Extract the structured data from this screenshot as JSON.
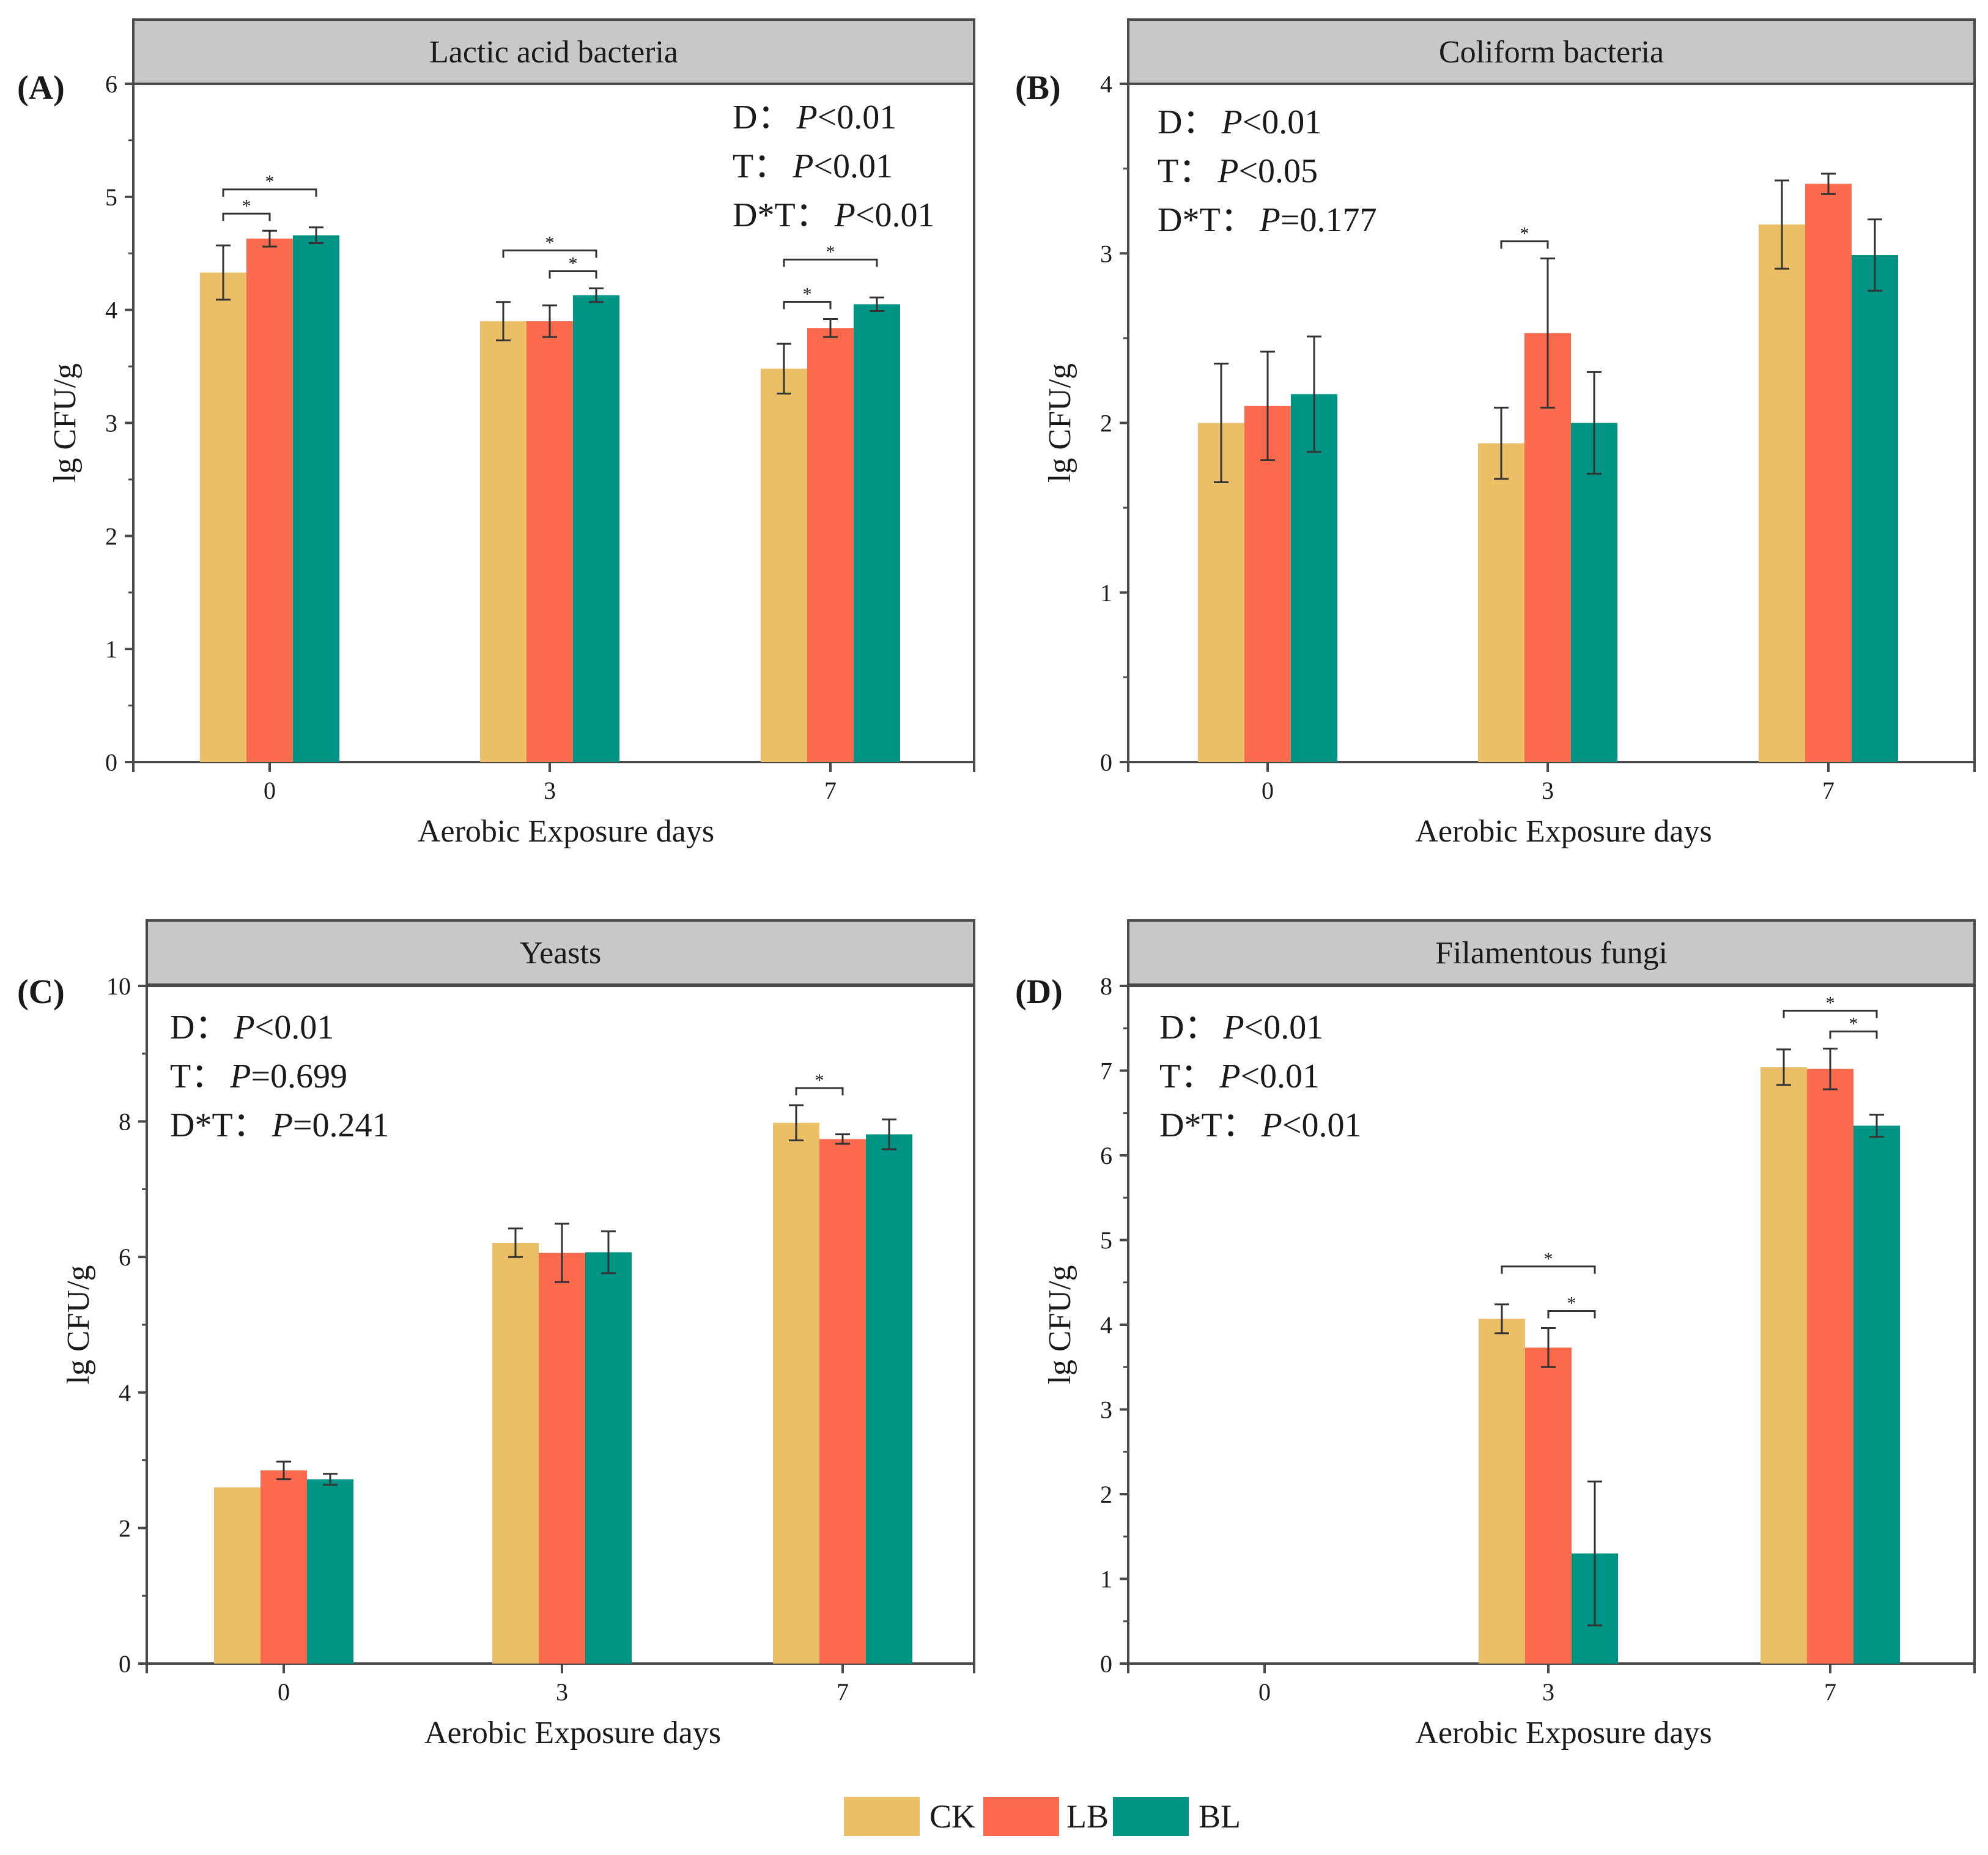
{
  "figure": {
    "legend": [
      {
        "name": "CK",
        "color": "#EBBF66"
      },
      {
        "name": "LB",
        "color": "#FB6A4C"
      },
      {
        "name": "BL",
        "color": "#009484"
      }
    ]
  },
  "chart_data": [
    {
      "type": "bar",
      "panel_label": "(A)",
      "title": "Lactic acid bacteria",
      "xlabel": "Aerobic Exposure days",
      "ylabel": "lg CFU/g",
      "categories": [
        "0",
        "3",
        "7"
      ],
      "ylim": [
        0,
        6
      ],
      "yticks": [
        0,
        1,
        2,
        3,
        4,
        5,
        6
      ],
      "series": [
        {
          "name": "CK",
          "values": [
            4.33,
            3.9,
            3.48
          ],
          "errors": [
            0.24,
            0.17,
            0.22
          ]
        },
        {
          "name": "LB",
          "values": [
            4.63,
            3.9,
            3.84
          ],
          "errors": [
            0.07,
            0.14,
            0.08
          ]
        },
        {
          "name": "BL",
          "values": [
            4.66,
            4.13,
            4.05
          ],
          "errors": [
            0.07,
            0.06,
            0.06
          ]
        }
      ],
      "stats": [
        {
          "term": "D：",
          "p": "P",
          "rest": "<0.01"
        },
        {
          "term": "T：",
          "p": "P",
          "rest": "<0.01"
        },
        {
          "term": "D*T：",
          "p": "P",
          "rest": "<0.01"
        }
      ],
      "stats_position": "top-right",
      "significance": [
        {
          "category": 0,
          "from": 0,
          "to": 1,
          "label": "*"
        },
        {
          "category": 0,
          "from": 0,
          "to": 2,
          "label": "*"
        },
        {
          "category": 1,
          "from": 1,
          "to": 2,
          "label": "*"
        },
        {
          "category": 1,
          "from": 0,
          "to": 2,
          "label": "*"
        },
        {
          "category": 2,
          "from": 0,
          "to": 1,
          "label": "*"
        },
        {
          "category": 2,
          "from": 0,
          "to": 2,
          "label": "*"
        }
      ]
    },
    {
      "type": "bar",
      "panel_label": "(B)",
      "title": "Coliform bacteria",
      "xlabel": "Aerobic Exposure days",
      "ylabel": "lg CFU/g",
      "categories": [
        "0",
        "3",
        "7"
      ],
      "ylim": [
        0,
        4
      ],
      "yticks": [
        0,
        1,
        2,
        3,
        4
      ],
      "series": [
        {
          "name": "CK",
          "values": [
            2.0,
            1.88,
            3.17
          ],
          "errors": [
            0.35,
            0.21,
            0.26
          ]
        },
        {
          "name": "LB",
          "values": [
            2.1,
            2.53,
            3.41
          ],
          "errors": [
            0.32,
            0.44,
            0.06
          ]
        },
        {
          "name": "BL",
          "values": [
            2.17,
            2.0,
            2.99
          ],
          "errors": [
            0.34,
            0.3,
            0.21
          ]
        }
      ],
      "stats": [
        {
          "term": "D：",
          "p": "P",
          "rest": "<0.01"
        },
        {
          "term": "T：",
          "p": "P",
          "rest": "<0.05"
        },
        {
          "term": "D*T：",
          "p": "P",
          "rest": "=0.177"
        }
      ],
      "stats_position": "top-left",
      "significance": [
        {
          "category": 1,
          "from": 0,
          "to": 1,
          "label": "*"
        }
      ]
    },
    {
      "type": "bar",
      "panel_label": "(C)",
      "title": "Yeasts",
      "xlabel": "Aerobic Exposure days",
      "ylabel": "lg CFU/g",
      "categories": [
        "0",
        "3",
        "7"
      ],
      "ylim": [
        0,
        10
      ],
      "yticks": [
        0,
        2,
        4,
        6,
        8,
        10
      ],
      "series": [
        {
          "name": "CK",
          "values": [
            2.6,
            6.21,
            7.98
          ],
          "errors": [
            0.0,
            0.21,
            0.26
          ]
        },
        {
          "name": "LB",
          "values": [
            2.85,
            6.06,
            7.74
          ],
          "errors": [
            0.13,
            0.43,
            0.07
          ]
        },
        {
          "name": "BL",
          "values": [
            2.72,
            6.07,
            7.81
          ],
          "errors": [
            0.08,
            0.31,
            0.22
          ]
        }
      ],
      "stats": [
        {
          "term": "D：",
          "p": "P",
          "rest": "<0.01"
        },
        {
          "term": "T：",
          "p": "P",
          "rest": "=0.699"
        },
        {
          "term": "D*T：",
          "p": "P",
          "rest": "=0.241"
        }
      ],
      "stats_position": "top-left",
      "significance": [
        {
          "category": 2,
          "from": 0,
          "to": 1,
          "label": "*"
        }
      ]
    },
    {
      "type": "bar",
      "panel_label": "(D)",
      "title": "Filamentous fungi",
      "xlabel": "Aerobic Exposure days",
      "ylabel": "lg CFU/g",
      "categories": [
        "0",
        "3",
        "7"
      ],
      "ylim": [
        0,
        8
      ],
      "yticks": [
        0,
        1,
        2,
        3,
        4,
        5,
        6,
        7,
        8
      ],
      "series": [
        {
          "name": "CK",
          "values": [
            0,
            4.07,
            7.04
          ],
          "errors": [
            0,
            0.17,
            0.21
          ]
        },
        {
          "name": "LB",
          "values": [
            0,
            3.73,
            7.02
          ],
          "errors": [
            0,
            0.23,
            0.24
          ]
        },
        {
          "name": "BL",
          "values": [
            0,
            1.3,
            6.35
          ],
          "errors": [
            0,
            0.85,
            0.13
          ]
        }
      ],
      "stats": [
        {
          "term": "D：",
          "p": "P",
          "rest": "<0.01"
        },
        {
          "term": "T：",
          "p": "P",
          "rest": "<0.01"
        },
        {
          "term": "D*T：",
          "p": "P",
          "rest": "<0.01"
        }
      ],
      "stats_position": "top-left",
      "significance": [
        {
          "category": 1,
          "from": 1,
          "to": 2,
          "label": "*"
        },
        {
          "category": 1,
          "from": 0,
          "to": 2,
          "label": "*"
        },
        {
          "category": 2,
          "from": 1,
          "to": 2,
          "label": "*"
        },
        {
          "category": 2,
          "from": 0,
          "to": 2,
          "label": "*"
        }
      ]
    }
  ]
}
